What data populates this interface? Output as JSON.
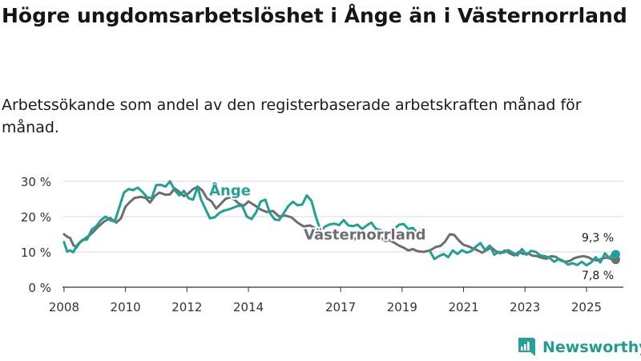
{
  "title": "Högre ungdomsarbetslöshet i Ånge än i Västernorrland",
  "subtitle": "Arbetssökande som andel av den registerbaserade arbetskraften månad för månad.",
  "brand": {
    "name": "Newsworthy",
    "icon": "newsworthy-logo-icon",
    "color": "#2aa198"
  },
  "chart_data": {
    "type": "line",
    "title": "",
    "xlabel": "",
    "ylabel": "",
    "x_ticks": [
      2008,
      2010,
      2012,
      2014,
      2017,
      2019,
      2021,
      2023,
      2025
    ],
    "y_ticks": [
      {
        "value": 0,
        "label": "0 %"
      },
      {
        "value": 10,
        "label": "10 %"
      },
      {
        "value": 20,
        "label": "20 %"
      },
      {
        "value": 30,
        "label": "30 %"
      }
    ],
    "xlim": [
      2007.95,
      2026.2
    ],
    "ylim": [
      0,
      30
    ],
    "grid": true,
    "series": [
      {
        "name": "Västernorrland",
        "color": "#6e6e72",
        "label_anchor": {
          "x": 2015.8,
          "y": 13.5
        },
        "end_label": "7,8 %",
        "end_value": 7.8,
        "points": [
          [
            2008.0,
            15.0
          ],
          [
            2008.1,
            14.3
          ],
          [
            2008.2,
            13.9
          ],
          [
            2008.3,
            12.0
          ],
          [
            2008.4,
            11.2
          ],
          [
            2008.5,
            12.5
          ],
          [
            2008.7,
            13.9
          ],
          [
            2008.9,
            15.2
          ],
          [
            2009.1,
            17.0
          ],
          [
            2009.3,
            18.6
          ],
          [
            2009.5,
            19.6
          ],
          [
            2009.7,
            18.3
          ],
          [
            2009.85,
            19.5
          ],
          [
            2010.0,
            22.8
          ],
          [
            2010.15,
            24.2
          ],
          [
            2010.3,
            25.3
          ],
          [
            2010.5,
            25.6
          ],
          [
            2010.65,
            25.3
          ],
          [
            2010.8,
            24.0
          ],
          [
            2010.95,
            25.8
          ],
          [
            2011.1,
            26.8
          ],
          [
            2011.3,
            26.2
          ],
          [
            2011.45,
            26.3
          ],
          [
            2011.6,
            28.0
          ],
          [
            2011.75,
            27.0
          ],
          [
            2011.9,
            25.8
          ],
          [
            2012.05,
            26.6
          ],
          [
            2012.2,
            27.8
          ],
          [
            2012.35,
            28.5
          ],
          [
            2012.5,
            27.4
          ],
          [
            2012.65,
            25.2
          ],
          [
            2012.8,
            24.3
          ],
          [
            2012.95,
            22.3
          ],
          [
            2013.1,
            23.6
          ],
          [
            2013.25,
            25.0
          ],
          [
            2013.4,
            25.5
          ],
          [
            2013.55,
            24.8
          ],
          [
            2013.7,
            23.6
          ],
          [
            2013.85,
            23.1
          ],
          [
            2014.0,
            24.3
          ],
          [
            2014.2,
            23.2
          ],
          [
            2014.4,
            22.0
          ],
          [
            2014.6,
            21.3
          ],
          [
            2014.8,
            21.6
          ],
          [
            2015.0,
            20.0
          ],
          [
            2015.2,
            20.3
          ],
          [
            2015.4,
            19.8
          ],
          [
            2015.6,
            18.3
          ],
          [
            2015.8,
            17.2
          ],
          [
            2016.0,
            17.5
          ],
          [
            2016.2,
            16.6
          ],
          [
            2016.35,
            15.7
          ],
          [
            2016.5,
            14.2
          ],
          [
            2016.65,
            14.2
          ],
          [
            2016.8,
            15.2
          ],
          [
            2017.0,
            15.0
          ],
          [
            2017.2,
            14.8
          ],
          [
            2017.35,
            14.5
          ],
          [
            2017.5,
            13.5
          ],
          [
            2017.6,
            13.5
          ]
        ],
        "segments": [
          [
            [
              2018.15,
              14.2
            ],
            [
              2018.3,
              14.0
            ],
            [
              2018.45,
              13.1
            ],
            [
              2018.6,
              13.3
            ],
            [
              2018.75,
              12.6
            ],
            [
              2018.9,
              11.8
            ],
            [
              2019.05,
              11.2
            ],
            [
              2019.2,
              10.4
            ],
            [
              2019.35,
              10.8
            ],
            [
              2019.5,
              10.2
            ],
            [
              2019.7,
              10.0
            ],
            [
              2019.9,
              10.4
            ],
            [
              2020.1,
              11.4
            ],
            [
              2020.25,
              11.7
            ],
            [
              2020.4,
              12.9
            ],
            [
              2020.55,
              15.0
            ],
            [
              2020.7,
              14.8
            ],
            [
              2020.85,
              13.2
            ],
            [
              2021.0,
              12.0
            ],
            [
              2021.15,
              11.6
            ],
            [
              2021.3,
              11.0
            ],
            [
              2021.45,
              10.5
            ],
            [
              2021.6,
              9.8
            ],
            [
              2021.75,
              10.5
            ],
            [
              2021.9,
              11.3
            ],
            [
              2022.05,
              10.2
            ],
            [
              2022.2,
              9.6
            ],
            [
              2022.35,
              10.4
            ],
            [
              2022.5,
              9.6
            ],
            [
              2022.65,
              9.0
            ],
            [
              2022.8,
              10.0
            ],
            [
              2022.95,
              9.4
            ],
            [
              2023.1,
              9.6
            ],
            [
              2023.25,
              8.9
            ],
            [
              2023.4,
              8.8
            ],
            [
              2023.55,
              8.3
            ],
            [
              2023.7,
              8.1
            ],
            [
              2023.85,
              8.8
            ],
            [
              2024.0,
              8.6
            ],
            [
              2024.15,
              7.6
            ],
            [
              2024.3,
              7.2
            ],
            [
              2024.45,
              7.4
            ],
            [
              2024.6,
              8.2
            ],
            [
              2024.75,
              8.6
            ],
            [
              2024.9,
              8.8
            ],
            [
              2025.05,
              8.5
            ],
            [
              2025.2,
              7.8
            ],
            [
              2025.35,
              7.6
            ],
            [
              2025.5,
              8.1
            ],
            [
              2025.65,
              8.4
            ],
            [
              2025.8,
              8.0
            ],
            [
              2025.95,
              7.8
            ]
          ]
        ]
      },
      {
        "name": "Ånge",
        "color": "#21a095",
        "label_anchor": {
          "x": 2013.4,
          "y": 26.0
        },
        "end_label": "9,3 %",
        "end_value": 9.3,
        "points": [
          [
            2008.0,
            12.8
          ],
          [
            2008.1,
            10.1
          ],
          [
            2008.2,
            10.4
          ],
          [
            2008.3,
            9.9
          ],
          [
            2008.45,
            12.2
          ],
          [
            2008.6,
            13.4
          ],
          [
            2008.75,
            13.5
          ],
          [
            2008.9,
            16.3
          ],
          [
            2009.05,
            17.3
          ],
          [
            2009.2,
            19.0
          ],
          [
            2009.35,
            20.0
          ],
          [
            2009.5,
            19.0
          ],
          [
            2009.65,
            18.6
          ],
          [
            2009.8,
            22.7
          ],
          [
            2009.95,
            26.8
          ],
          [
            2010.1,
            27.8
          ],
          [
            2010.25,
            27.5
          ],
          [
            2010.4,
            28.2
          ],
          [
            2010.55,
            27.0
          ],
          [
            2010.7,
            25.5
          ],
          [
            2010.85,
            25.2
          ],
          [
            2011.0,
            28.9
          ],
          [
            2011.15,
            29.0
          ],
          [
            2011.3,
            28.5
          ],
          [
            2011.45,
            30.0
          ],
          [
            2011.6,
            27.5
          ],
          [
            2011.75,
            26.0
          ],
          [
            2011.9,
            27.3
          ],
          [
            2012.05,
            25.2
          ],
          [
            2012.2,
            24.8
          ],
          [
            2012.35,
            28.5
          ],
          [
            2012.45,
            25.0
          ],
          [
            2012.6,
            22.2
          ],
          [
            2012.75,
            19.5
          ],
          [
            2012.9,
            19.8
          ],
          [
            2013.05,
            21.0
          ],
          [
            2013.2,
            21.7
          ],
          [
            2013.35,
            22.0
          ],
          [
            2013.5,
            22.5
          ],
          [
            2013.65,
            23.0
          ],
          [
            2013.8,
            23.0
          ],
          [
            2013.95,
            20.0
          ],
          [
            2014.1,
            19.3
          ],
          [
            2014.25,
            21.2
          ],
          [
            2014.4,
            24.3
          ],
          [
            2014.55,
            24.8
          ],
          [
            2014.7,
            21.0
          ],
          [
            2014.85,
            19.2
          ],
          [
            2015.0,
            19.0
          ],
          [
            2015.15,
            21.0
          ],
          [
            2015.3,
            23.0
          ],
          [
            2015.45,
            24.2
          ],
          [
            2015.6,
            23.2
          ],
          [
            2015.75,
            23.4
          ],
          [
            2015.9,
            26.0
          ],
          [
            2016.05,
            24.5
          ],
          [
            2016.2,
            19.8
          ],
          [
            2016.35,
            16.0
          ],
          [
            2016.5,
            17.2
          ],
          [
            2016.65,
            17.8
          ],
          [
            2016.8,
            18.0
          ],
          [
            2016.95,
            17.6
          ],
          [
            2017.1,
            19.0
          ],
          [
            2017.25,
            17.5
          ],
          [
            2017.4,
            17.3
          ],
          [
            2017.55,
            17.7
          ],
          [
            2017.7,
            16.5
          ],
          [
            2017.85,
            17.5
          ],
          [
            2018.0,
            18.3
          ],
          [
            2018.15,
            16.5
          ],
          [
            2018.3,
            16.2
          ],
          [
            2018.45,
            15.0
          ],
          [
            2018.6,
            15.5
          ],
          [
            2018.75,
            16.5
          ],
          [
            2018.9,
            17.7
          ],
          [
            2019.05,
            17.9
          ],
          [
            2019.2,
            16.5
          ],
          [
            2019.35,
            16.8
          ],
          [
            2019.5,
            15.2
          ],
          [
            2019.6,
            16.0
          ],
          [
            2019.7,
            15.5
          ]
        ],
        "segments": [
          [
            [
              2019.9,
              10.3
            ],
            [
              2020.05,
              8.0
            ],
            [
              2020.2,
              8.8
            ],
            [
              2020.35,
              9.4
            ],
            [
              2020.5,
              8.5
            ],
            [
              2020.65,
              10.4
            ],
            [
              2020.8,
              9.4
            ],
            [
              2020.95,
              10.5
            ],
            [
              2021.1,
              9.8
            ],
            [
              2021.25,
              10.2
            ],
            [
              2021.4,
              11.5
            ],
            [
              2021.55,
              12.5
            ],
            [
              2021.7,
              10.5
            ],
            [
              2021.85,
              11.8
            ],
            [
              2022.0,
              9.2
            ],
            [
              2022.15,
              10.0
            ],
            [
              2022.3,
              9.8
            ],
            [
              2022.45,
              10.5
            ],
            [
              2022.6,
              9.8
            ],
            [
              2022.75,
              9.0
            ],
            [
              2022.9,
              10.8
            ],
            [
              2023.05,
              9.2
            ],
            [
              2023.2,
              10.3
            ],
            [
              2023.35,
              10.0
            ],
            [
              2023.5,
              9.0
            ],
            [
              2023.65,
              8.8
            ],
            [
              2023.8,
              8.3
            ],
            [
              2023.95,
              7.2
            ],
            [
              2024.1,
              8.0
            ],
            [
              2024.25,
              7.4
            ],
            [
              2024.4,
              6.4
            ],
            [
              2024.55,
              6.8
            ],
            [
              2024.7,
              6.3
            ],
            [
              2024.85,
              7.2
            ],
            [
              2025.0,
              6.2
            ],
            [
              2025.15,
              7.0
            ],
            [
              2025.3,
              8.5
            ],
            [
              2025.45,
              7.0
            ],
            [
              2025.6,
              9.6
            ],
            [
              2025.75,
              8.2
            ],
            [
              2025.85,
              9.5
            ],
            [
              2025.95,
              9.3
            ]
          ]
        ]
      }
    ]
  }
}
